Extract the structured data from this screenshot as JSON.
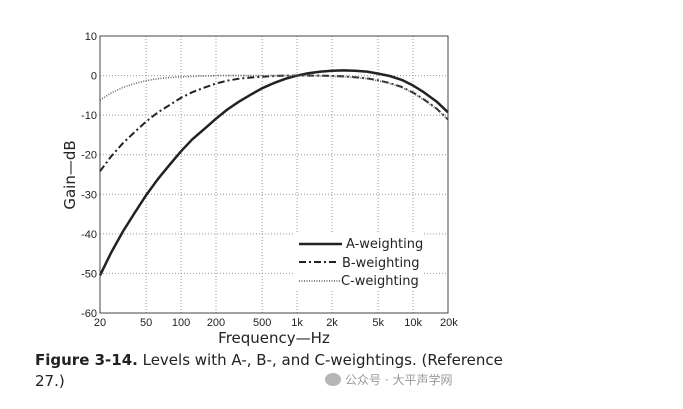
{
  "chart_data": {
    "type": "line",
    "xscale": "log",
    "xlim": [
      20,
      20000
    ],
    "ylim": [
      -60,
      10
    ],
    "xticks": [
      20,
      50,
      100,
      200,
      500,
      1000,
      2000,
      5000,
      10000,
      20000
    ],
    "xtick_labels": [
      "20",
      "50",
      "100",
      "200",
      "500",
      "1k",
      "2k",
      "5k",
      "10k",
      "20k"
    ],
    "yticks": [
      10,
      0,
      -10,
      -20,
      -30,
      -40,
      -50,
      -60
    ],
    "ytick_labels": [
      "10",
      "0",
      "-10",
      "-20",
      "-30",
      "-40",
      "-50",
      "-60"
    ],
    "xlabel": "Frequency—Hz",
    "ylabel": "Gain—dB",
    "grid": true,
    "legend_position": "bottom-right",
    "x": [
      20,
      25,
      31.5,
      40,
      50,
      63,
      80,
      100,
      125,
      160,
      200,
      250,
      315,
      400,
      500,
      630,
      800,
      1000,
      1250,
      1600,
      2000,
      2500,
      3150,
      4000,
      5000,
      6300,
      8000,
      10000,
      12500,
      16000,
      20000
    ],
    "series": [
      {
        "name": "A-weighting",
        "style": "solid",
        "values": [
          -50.5,
          -44.7,
          -39.4,
          -34.6,
          -30.2,
          -26.2,
          -22.5,
          -19.1,
          -16.1,
          -13.4,
          -10.9,
          -8.6,
          -6.6,
          -4.8,
          -3.2,
          -1.9,
          -0.8,
          0,
          0.6,
          1.0,
          1.2,
          1.3,
          1.2,
          1.0,
          0.5,
          -0.1,
          -1.1,
          -2.5,
          -4.3,
          -6.6,
          -9.3
        ]
      },
      {
        "name": "B-weighting",
        "style": "dashdot",
        "values": [
          -24.2,
          -20.4,
          -17.1,
          -14.2,
          -11.6,
          -9.3,
          -7.4,
          -5.6,
          -4.2,
          -3.0,
          -2.0,
          -1.3,
          -0.8,
          -0.5,
          -0.3,
          -0.1,
          0,
          0,
          0,
          0,
          -0.1,
          -0.2,
          -0.4,
          -0.7,
          -1.2,
          -1.9,
          -2.9,
          -4.3,
          -6.1,
          -8.4,
          -11.1
        ]
      },
      {
        "name": "C-weighting",
        "style": "dotted",
        "values": [
          -6.2,
          -4.4,
          -3.0,
          -2.0,
          -1.3,
          -0.8,
          -0.5,
          -0.3,
          -0.2,
          -0.1,
          0,
          0,
          0,
          0,
          0,
          0,
          0,
          0,
          0,
          -0.1,
          -0.2,
          -0.3,
          -0.5,
          -0.8,
          -1.3,
          -2.0,
          -3.0,
          -4.4,
          -6.2,
          -8.5,
          -11.2
        ]
      }
    ]
  },
  "caption": {
    "label": "Figure 3-14.",
    "text": " Levels with A-, B-, and C-weightings. (Reference 27.)"
  },
  "watermark": "公众号 · 大平声学网"
}
